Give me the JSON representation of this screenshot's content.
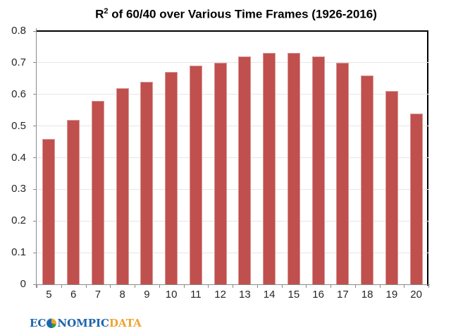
{
  "chart_data": {
    "type": "bar",
    "title": {
      "base": "R",
      "sup": "2",
      "rest": " of 60/40 over Various Time Frames (1926-2016)"
    },
    "categories": [
      "5",
      "6",
      "7",
      "8",
      "9",
      "10",
      "11",
      "12",
      "13",
      "14",
      "15",
      "16",
      "17",
      "18",
      "19",
      "20"
    ],
    "values": [
      0.46,
      0.52,
      0.58,
      0.62,
      0.64,
      0.67,
      0.69,
      0.7,
      0.72,
      0.73,
      0.73,
      0.72,
      0.7,
      0.66,
      0.61,
      0.54
    ],
    "xlabel": "",
    "ylabel": "",
    "ylim": [
      0,
      0.8
    ],
    "ytick_labels": [
      "0",
      "0.1",
      "0.2",
      "0.3",
      "0.4",
      "0.5",
      "0.6",
      "0.7",
      "0.8"
    ],
    "grid": true,
    "legend": "none",
    "colors": {
      "bar_fill": "#C0504D",
      "bar_border": "#D99694",
      "gridline": "#E6E6E6",
      "axis_line": "#8A8A8A",
      "plot_border": "#000000",
      "tick_text": "#262626",
      "title_text": "#000000"
    }
  },
  "footer": {
    "logo": {
      "part1": "EC",
      "globe_icon": "globe-pie-icon",
      "part2": "NOMPIC",
      "part3": "DATA",
      "blue": "#1D65AE",
      "orange": "#F0A22F"
    }
  }
}
